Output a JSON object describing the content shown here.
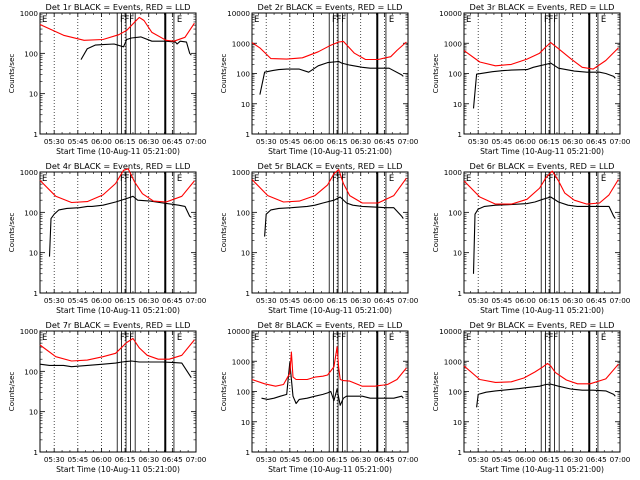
{
  "figure": {
    "layout": "3x3 grid",
    "colors": {
      "events": "#000000",
      "lld": "#ff0000",
      "axes": "#000000",
      "background": "#ffffff"
    }
  },
  "chart_data": [
    {
      "type": "line",
      "detector": "1r",
      "title": "Det 1r BLACK = Events, RED = LLD",
      "flag_labels": [
        "E",
        "F",
        "F",
        "F",
        "E"
      ],
      "ylabel": "Counts/sec",
      "xlabel": "Start Time (10-Aug-11 05:21:00)",
      "xlim": [
        "05:21",
        "07:00"
      ],
      "ylim": [
        1,
        1000
      ],
      "yscale": "log",
      "xticks": [
        "05:30",
        "05:45",
        "06:00",
        "06:15",
        "06:30",
        "06:45",
        "07:00"
      ],
      "yticks": [
        "1",
        "10",
        "100",
        "1000"
      ],
      "series": [
        {
          "name": "Events",
          "color": "black",
          "x_min": [
            26,
            30,
            35,
            40,
            47,
            53,
            55,
            58,
            64,
            71,
            72,
            80,
            86,
            87,
            89,
            93,
            95,
            96
          ],
          "y": [
            70,
            130,
            160,
            165,
            170,
            145,
            220,
            240,
            255,
            200,
            200,
            200,
            190,
            170,
            200,
            190,
            100,
            90
          ]
        },
        {
          "name": "LLD",
          "color": "red",
          "x_min": [
            0,
            15,
            28,
            40,
            50,
            55,
            60,
            63,
            66,
            71,
            80,
            85,
            92,
            98
          ],
          "y": [
            520,
            280,
            210,
            220,
            290,
            370,
            590,
            780,
            650,
            330,
            210,
            200,
            250,
            560
          ]
        }
      ]
    },
    {
      "type": "line",
      "detector": "2r",
      "title": "Det 2r BLACK = Events, RED = LLD",
      "flag_labels": [
        "E",
        "F",
        "F",
        "F",
        "E"
      ],
      "ylabel": "Counts/sec",
      "xlabel": "Start Time (10-Aug-11 05:21:00)",
      "xlim": [
        "05:21",
        "07:00"
      ],
      "ylim": [
        1,
        10000
      ],
      "yscale": "log",
      "xticks": [
        "05:30",
        "05:45",
        "06:00",
        "06:15",
        "06:30",
        "06:45",
        "07:00"
      ],
      "yticks": [
        "1",
        "10",
        "100",
        "1000",
        "10000"
      ],
      "series": [
        {
          "name": "Events",
          "color": "black",
          "x_min": [
            5,
            8,
            13,
            17,
            22,
            30,
            36,
            42,
            48,
            55,
            57,
            62,
            70,
            75,
            80,
            87,
            95,
            96
          ],
          "y": [
            20,
            110,
            125,
            135,
            140,
            140,
            110,
            180,
            230,
            250,
            220,
            190,
            160,
            150,
            150,
            150,
            90,
            80
          ]
        },
        {
          "name": "LLD",
          "color": "red",
          "x_min": [
            0,
            5,
            12,
            22,
            32,
            42,
            50,
            55,
            58,
            65,
            72,
            80,
            88,
            92,
            98
          ],
          "y": [
            1050,
            700,
            310,
            300,
            330,
            520,
            860,
            1100,
            1150,
            470,
            290,
            290,
            360,
            580,
            1100
          ]
        }
      ]
    },
    {
      "type": "line",
      "detector": "3r",
      "title": "Det 3r BLACK = Events, RED = LLD",
      "flag_labels": [
        "E",
        "F",
        "F",
        "F",
        "E"
      ],
      "ylabel": "Counts/sec",
      "xlabel": "Start Time (10-Aug-11 05:21:00)",
      "xlim": [
        "05:21",
        "07:00"
      ],
      "ylim": [
        1,
        10000
      ],
      "yscale": "log",
      "xticks": [
        "05:30",
        "05:45",
        "06:00",
        "06:15",
        "06:30",
        "06:45",
        "07:00"
      ],
      "yticks": [
        "1",
        "10",
        "100",
        "1000",
        "10000"
      ],
      "series": [
        {
          "name": "Events",
          "color": "black",
          "x_min": [
            6,
            8,
            13,
            18,
            25,
            30,
            40,
            44,
            48,
            52,
            55,
            60,
            70,
            78,
            86,
            90,
            95,
            96
          ],
          "y": [
            7,
            95,
            105,
            115,
            125,
            130,
            135,
            160,
            180,
            200,
            220,
            150,
            120,
            110,
            110,
            100,
            80,
            70
          ]
        },
        {
          "name": "LLD",
          "color": "red",
          "x_min": [
            0,
            10,
            20,
            30,
            40,
            48,
            52,
            55,
            60,
            68,
            75,
            82,
            90,
            98
          ],
          "y": [
            570,
            240,
            180,
            200,
            300,
            470,
            760,
            1050,
            660,
            300,
            160,
            140,
            270,
            700
          ]
        }
      ]
    },
    {
      "type": "line",
      "detector": "4r",
      "title": "Det 4r BLACK = Events, RED = LLD",
      "flag_labels": [
        "E",
        "F",
        "F",
        "F",
        "E"
      ],
      "ylabel": "Counts/sec",
      "xlabel": "Start Time (10-Aug-11 05:21:00)",
      "xlim": [
        "05:21",
        "07:00"
      ],
      "ylim": [
        1,
        1000
      ],
      "yscale": "log",
      "xticks": [
        "05:30",
        "05:45",
        "06:00",
        "06:15",
        "06:30",
        "06:45",
        "07:00"
      ],
      "yticks": [
        "1",
        "10",
        "100",
        "1000"
      ],
      "series": [
        {
          "name": "Events",
          "color": "black",
          "x_min": [
            6,
            7,
            9,
            12,
            17,
            25,
            30,
            33,
            40,
            48,
            55,
            59,
            62,
            70,
            78,
            83,
            88,
            92,
            95,
            96
          ],
          "y": [
            8,
            70,
            90,
            115,
            125,
            130,
            140,
            140,
            150,
            180,
            220,
            250,
            200,
            190,
            170,
            160,
            150,
            140,
            80,
            75
          ]
        },
        {
          "name": "LLD",
          "color": "red",
          "x_min": [
            0,
            10,
            20,
            30,
            40,
            48,
            53,
            56,
            60,
            65,
            72,
            80,
            90,
            98
          ],
          "y": [
            620,
            250,
            175,
            185,
            270,
            520,
            1100,
            1200,
            570,
            290,
            190,
            180,
            250,
            600
          ]
        }
      ]
    },
    {
      "type": "line",
      "detector": "5r",
      "title": "Det 5r BLACK = Events, RED = LLD",
      "flag_labels": [
        "E",
        "F",
        "F",
        "F",
        "E"
      ],
      "ylabel": "Counts/sec",
      "xlabel": "Start Time (10-Aug-11 05:21:00)",
      "xlim": [
        "05:21",
        "07:00"
      ],
      "ylim": [
        1,
        1000
      ],
      "yscale": "log",
      "xticks": [
        "05:30",
        "05:45",
        "06:00",
        "06:15",
        "06:30",
        "06:45",
        "07:00"
      ],
      "yticks": [
        "1",
        "10",
        "100",
        "1000"
      ],
      "series": [
        {
          "name": "Events",
          "color": "black",
          "x_min": [
            8,
            9,
            12,
            17,
            25,
            35,
            40,
            45,
            52,
            56,
            60,
            64,
            70,
            78,
            85,
            90,
            95,
            96
          ],
          "y": [
            25,
            90,
            115,
            125,
            130,
            140,
            150,
            170,
            200,
            240,
            170,
            150,
            140,
            135,
            130,
            130,
            80,
            70
          ]
        },
        {
          "name": "LLD",
          "color": "red",
          "x_min": [
            0,
            10,
            20,
            30,
            40,
            48,
            52,
            55,
            58,
            62,
            70,
            80,
            90,
            98
          ],
          "y": [
            650,
            260,
            180,
            190,
            260,
            480,
            900,
            1150,
            520,
            260,
            170,
            170,
            260,
            700
          ]
        }
      ]
    },
    {
      "type": "line",
      "detector": "6r",
      "title": "Det 6r BLACK = Events, RED = LLD",
      "flag_labels": [
        "E",
        "F",
        "F",
        "F",
        "E"
      ],
      "ylabel": "Counts/sec",
      "xlabel": "Start Time (10-Aug-11 05:21:00)",
      "xlim": [
        "05:21",
        "07:00"
      ],
      "ylim": [
        1,
        1000
      ],
      "yscale": "log",
      "xticks": [
        "05:30",
        "05:45",
        "06:00",
        "06:15",
        "06:30",
        "06:45",
        "07:00"
      ],
      "yticks": [
        "1",
        "10",
        "100",
        "1000"
      ],
      "series": [
        {
          "name": "Events",
          "color": "black",
          "x_min": [
            6,
            7,
            9,
            13,
            20,
            28,
            35,
            40,
            45,
            50,
            55,
            60,
            66,
            72,
            78,
            85,
            92,
            95,
            96
          ],
          "y": [
            3,
            90,
            120,
            140,
            150,
            155,
            160,
            165,
            180,
            210,
            240,
            180,
            150,
            140,
            140,
            140,
            140,
            80,
            70
          ]
        },
        {
          "name": "LLD",
          "color": "red",
          "x_min": [
            0,
            10,
            20,
            30,
            40,
            48,
            52,
            56,
            60,
            64,
            70,
            78,
            86,
            92,
            98
          ],
          "y": [
            600,
            240,
            160,
            160,
            210,
            400,
            720,
            1050,
            600,
            300,
            200,
            160,
            170,
            270,
            650
          ]
        }
      ]
    },
    {
      "type": "line",
      "detector": "7r",
      "title": "Det 7r BLACK = Events, RED = LLD",
      "flag_labels": [
        "E",
        "F",
        "F",
        "F",
        "E"
      ],
      "ylabel": "Counts/sec",
      "xlabel": "Start Time (10-Aug-11 05:21:00)",
      "xlim": [
        "05:21",
        "07:00"
      ],
      "ylim": [
        1,
        1000
      ],
      "yscale": "log",
      "xticks": [
        "05:30",
        "05:45",
        "06:00",
        "06:15",
        "06:30",
        "06:45",
        "07:00"
      ],
      "yticks": [
        "1",
        "10",
        "100",
        "1000"
      ],
      "series": [
        {
          "name": "Events",
          "color": "black",
          "x_min": [
            0,
            6,
            15,
            20,
            30,
            40,
            48,
            52,
            58,
            63,
            70,
            78,
            85,
            90,
            95,
            96
          ],
          "y": [
            150,
            140,
            140,
            130,
            140,
            150,
            160,
            170,
            180,
            170,
            170,
            170,
            165,
            160,
            80,
            70
          ]
        },
        {
          "name": "LLD",
          "color": "red",
          "x_min": [
            0,
            10,
            20,
            30,
            40,
            48,
            55,
            59,
            63,
            68,
            75,
            82,
            90,
            98
          ],
          "y": [
            450,
            230,
            180,
            190,
            230,
            280,
            520,
            650,
            380,
            250,
            200,
            200,
            250,
            600
          ]
        }
      ]
    },
    {
      "type": "line",
      "detector": "8r",
      "title": "Det 8r BLACK = Events, RED = LLD",
      "flag_labels": [
        "E",
        "F",
        "F",
        "F",
        "E"
      ],
      "ylabel": "Counts/sec",
      "xlabel": "Start Time (10-Aug-11 05:21:00)",
      "xlim": [
        "05:21",
        "07:00"
      ],
      "ylim": [
        1,
        10000
      ],
      "yscale": "log",
      "xticks": [
        "05:30",
        "05:45",
        "06:00",
        "06:15",
        "06:30",
        "06:45",
        "07:00"
      ],
      "yticks": [
        "1",
        "10",
        "100",
        "1000",
        "10000"
      ],
      "series": [
        {
          "name": "Events",
          "color": "black",
          "x_min": [
            6,
            10,
            14,
            18,
            22,
            24,
            26,
            28,
            30,
            35,
            40,
            45,
            48,
            50,
            52,
            54,
            56,
            58,
            60,
            65,
            70,
            75,
            80,
            85,
            90,
            95,
            96
          ],
          "y": [
            60,
            55,
            60,
            70,
            80,
            900,
            70,
            40,
            55,
            60,
            70,
            80,
            90,
            100,
            50,
            120,
            35,
            60,
            70,
            70,
            70,
            60,
            60,
            60,
            60,
            70,
            60
          ]
        },
        {
          "name": "LLD",
          "color": "red",
          "x_min": [
            0,
            8,
            15,
            20,
            24,
            25,
            26,
            28,
            35,
            40,
            45,
            48,
            52,
            54,
            55,
            56,
            58,
            62,
            70,
            78,
            86,
            92,
            98
          ],
          "y": [
            250,
            180,
            150,
            170,
            400,
            2000,
            300,
            250,
            250,
            300,
            320,
            350,
            650,
            3000,
            600,
            250,
            230,
            220,
            150,
            150,
            170,
            250,
            600
          ]
        }
      ]
    },
    {
      "type": "line",
      "detector": "9r",
      "title": "Det 9r BLACK = Events, RED = LLD",
      "flag_labels": [
        "E",
        "F",
        "F",
        "F",
        "E"
      ],
      "ylabel": "Counts/sec",
      "xlabel": "Start Time (10-Aug-11 05:21:00)",
      "xlim": [
        "05:21",
        "07:00"
      ],
      "ylim": [
        1,
        10000
      ],
      "yscale": "log",
      "xticks": [
        "05:30",
        "05:45",
        "06:00",
        "06:15",
        "06:30",
        "06:45",
        "07:00"
      ],
      "yticks": [
        "1",
        "10",
        "100",
        "1000",
        "10000"
      ],
      "series": [
        {
          "name": "Events",
          "color": "black",
          "x_min": [
            8,
            9,
            14,
            20,
            28,
            35,
            40,
            48,
            52,
            55,
            60,
            68,
            75,
            82,
            90,
            95,
            96
          ],
          "y": [
            30,
            80,
            95,
            105,
            115,
            125,
            135,
            150,
            170,
            175,
            150,
            120,
            110,
            110,
            105,
            80,
            70
          ]
        },
        {
          "name": "LLD",
          "color": "red",
          "x_min": [
            0,
            10,
            20,
            30,
            38,
            45,
            50,
            53,
            55,
            58,
            65,
            72,
            80,
            90,
            98
          ],
          "y": [
            700,
            250,
            200,
            210,
            280,
            440,
            650,
            850,
            700,
            420,
            240,
            180,
            180,
            260,
            800
          ]
        }
      ]
    }
  ]
}
